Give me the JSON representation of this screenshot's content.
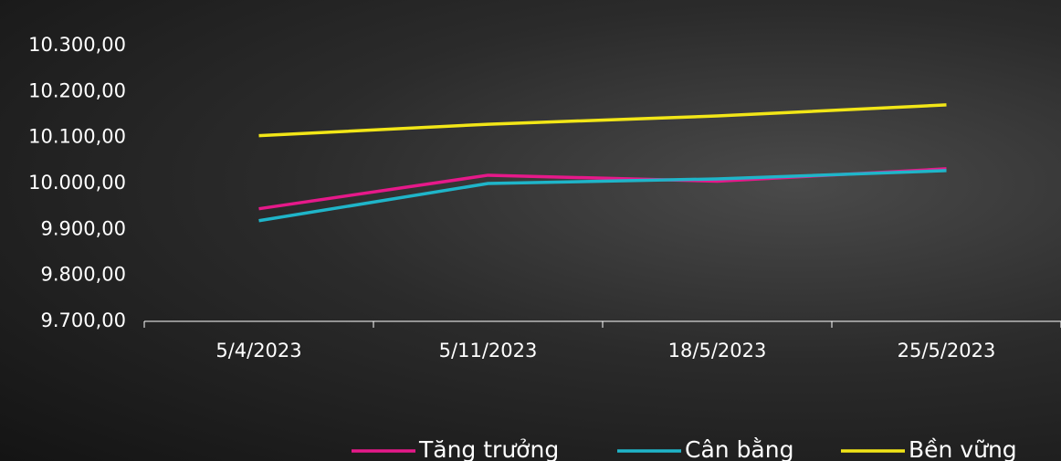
{
  "chart_data": {
    "type": "line",
    "categories": [
      "5/4/2023",
      "5/11/2023",
      "18/5/2023",
      "25/5/2023"
    ],
    "series": [
      {
        "name": "Tăng trưởng",
        "color": "#e6198a",
        "values": [
          9945,
          10018,
          10005,
          10032
        ]
      },
      {
        "name": "Cân bằng",
        "color": "#1fb5c9",
        "values": [
          9919,
          10000,
          10010,
          10028
        ]
      },
      {
        "name": "Bền vững",
        "color": "#f2e617",
        "values": [
          10104,
          10129,
          10147,
          10171
        ]
      }
    ],
    "ylim": [
      9700,
      10300
    ],
    "yticks": [
      {
        "value": 9700,
        "label": "9.700,00"
      },
      {
        "value": 9800,
        "label": "9.800,00"
      },
      {
        "value": 9900,
        "label": "9.900,00"
      },
      {
        "value": 10000,
        "label": "10.000,00"
      },
      {
        "value": 10100,
        "label": "10.100,00"
      },
      {
        "value": 10200,
        "label": "10.200,00"
      },
      {
        "value": 10300,
        "label": "10.300,00"
      }
    ],
    "grid": false,
    "legend": "bottom"
  }
}
